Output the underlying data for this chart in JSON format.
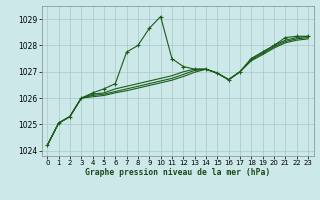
{
  "title": "Graphe pression niveau de la mer (hPa)",
  "background_color": "#cce8e8",
  "plot_bg_color": "#cce8e8",
  "grid_color": "#aac8c8",
  "line_color": "#1a5c1a",
  "xlim": [
    -0.5,
    23.5
  ],
  "ylim": [
    1023.8,
    1029.5
  ],
  "yticks": [
    1024,
    1025,
    1026,
    1027,
    1028,
    1029
  ],
  "xticks": [
    0,
    1,
    2,
    3,
    4,
    5,
    6,
    7,
    8,
    9,
    10,
    11,
    12,
    13,
    14,
    15,
    16,
    17,
    18,
    19,
    20,
    21,
    22,
    23
  ],
  "series1": [
    1024.2,
    1025.05,
    1025.3,
    1026.0,
    1026.2,
    1026.35,
    1026.55,
    1027.75,
    1028.0,
    1028.65,
    1029.1,
    1027.5,
    1027.2,
    1027.1,
    1027.1,
    1026.95,
    1026.7,
    1027.0,
    1027.5,
    1027.75,
    1028.0,
    1028.3,
    1028.35,
    1028.35
  ],
  "series2": [
    1024.2,
    1025.05,
    1025.3,
    1026.0,
    1026.15,
    1026.2,
    1026.35,
    1026.45,
    1026.55,
    1026.65,
    1026.75,
    1026.85,
    1027.0,
    1027.1,
    1027.1,
    1026.95,
    1026.7,
    1027.0,
    1027.5,
    1027.75,
    1028.0,
    1028.2,
    1028.3,
    1028.35
  ],
  "series3": [
    1024.2,
    1025.05,
    1025.3,
    1026.0,
    1026.1,
    1026.15,
    1026.25,
    1026.35,
    1026.45,
    1026.55,
    1026.65,
    1026.75,
    1026.9,
    1027.05,
    1027.1,
    1026.95,
    1026.7,
    1027.0,
    1027.45,
    1027.7,
    1027.95,
    1028.15,
    1028.25,
    1028.3
  ],
  "series4": [
    1024.2,
    1025.05,
    1025.3,
    1026.0,
    1026.05,
    1026.1,
    1026.2,
    1026.28,
    1026.38,
    1026.48,
    1026.58,
    1026.68,
    1026.82,
    1026.98,
    1027.1,
    1026.95,
    1026.7,
    1027.0,
    1027.42,
    1027.65,
    1027.9,
    1028.1,
    1028.2,
    1028.25
  ]
}
